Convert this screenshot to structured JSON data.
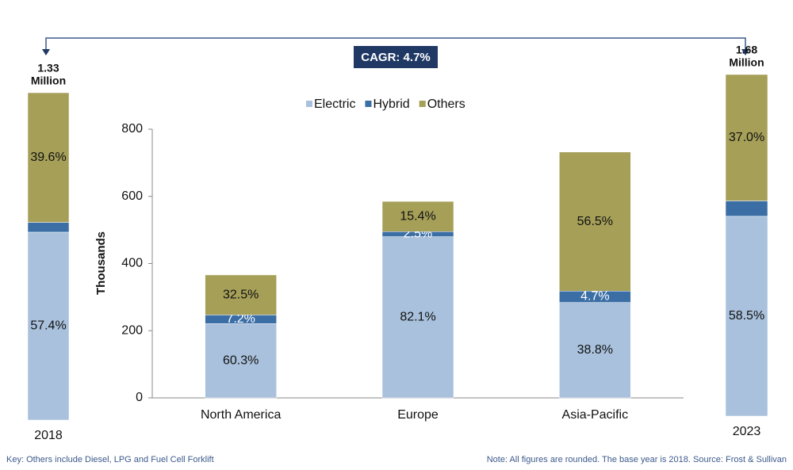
{
  "annotation": "CAGR: 4.7%",
  "notes": [
    "Key: Others include Diesel, LPG and Fuel Cell Forklift",
    "Note: All figures are rounded. The base year is 2018. Source: Frost & Sullivan"
  ],
  "chart_data": [
    {
      "type": "bar",
      "stacked": true,
      "ylabel": "Thousands",
      "categories": [
        "North America",
        "Europe",
        "Asia-Pacific"
      ],
      "series": [
        {
          "name": "Electric",
          "color": "#a9c1dc",
          "values": [
            221,
            480,
            284
          ],
          "share_labels": [
            "60.3%",
            "82.1%",
            "38.8%"
          ]
        },
        {
          "name": "Hybrid",
          "color": "#3b6ea5",
          "values": [
            26,
            15,
            34
          ],
          "share_labels": [
            "7.2%",
            "2.5%",
            "4.7%"
          ]
        },
        {
          "name": "Others",
          "color": "#a59f58",
          "values": [
            119,
            90,
            414
          ],
          "share_labels": [
            "32.5%",
            "15.4%",
            "56.5%"
          ]
        }
      ],
      "ylim": [
        0,
        800
      ],
      "yticks": [
        0,
        200,
        400,
        600,
        800
      ],
      "legend": "top"
    },
    {
      "type": "bar",
      "stacked": true,
      "categories": [
        "2018"
      ],
      "total_label": [
        "1.33",
        "Million"
      ],
      "series": [
        {
          "color": "#a9c1dc",
          "values": [
            57.4
          ],
          "value_labels": [
            "57.4%"
          ]
        },
        {
          "color": "#3b6ea5",
          "values": [
            3.0
          ],
          "value_labels": [
            null
          ]
        },
        {
          "color": "#a59f58",
          "values": [
            39.6
          ],
          "value_labels": [
            "39.6%"
          ]
        }
      ]
    },
    {
      "type": "bar",
      "stacked": true,
      "categories": [
        "2023"
      ],
      "total_label": [
        "1.68",
        "Million"
      ],
      "series": [
        {
          "color": "#a9c1dc",
          "values": [
            58.5
          ],
          "value_labels": [
            "58.5%"
          ]
        },
        {
          "color": "#3b6ea5",
          "values": [
            4.5
          ],
          "value_labels": [
            null
          ]
        },
        {
          "color": "#a59f58",
          "values": [
            37.0
          ],
          "value_labels": [
            "37.0%"
          ]
        }
      ]
    }
  ]
}
